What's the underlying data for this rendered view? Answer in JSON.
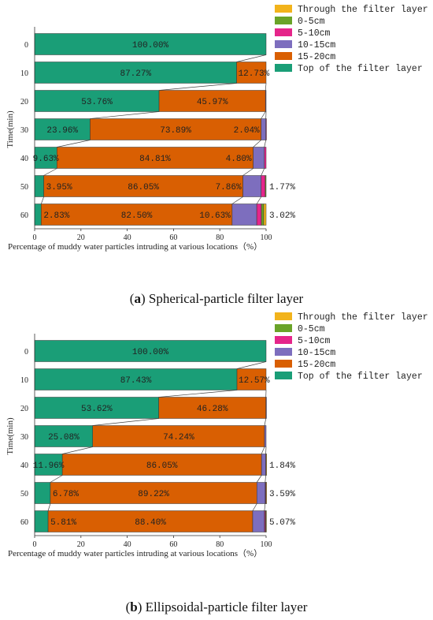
{
  "colors": {
    "Through the filter layer": "#F2B31B",
    "0-5cm": "#6AA328",
    "5-10cm": "#E5258A",
    "10-15cm": "#7D6EBE",
    "15-20cm": "#D95F02",
    "Top of the filter layer": "#1A9E77"
  },
  "chart_data": [
    {
      "type": "bar",
      "orientation": "horizontal-stacked",
      "caption_letter": "a",
      "caption_text": "Spherical-particle filter layer",
      "xlabel": "Percentage of muddy water particles intruding at various locations（%）",
      "ylabel": "Time(min)",
      "xlim": [
        0,
        100
      ],
      "xticks": [
        "0",
        "20",
        "40",
        "60",
        "80",
        "100"
      ],
      "categories": [
        "0",
        "10",
        "20",
        "30",
        "40",
        "50",
        "60"
      ],
      "legend": [
        "Through the filter layer",
        "0-5cm",
        "5-10cm",
        "10-15cm",
        "15-20cm",
        "Top of the filter layer"
      ],
      "legend_position": "top-right",
      "series": [
        {
          "name": "Top of the filter layer",
          "values": [
            100,
            87.27,
            53.76,
            23.96,
            9.63,
            3.95,
            2.83
          ]
        },
        {
          "name": "15-20cm",
          "values": [
            0,
            12.73,
            45.97,
            73.89,
            84.81,
            86.05,
            82.5
          ]
        },
        {
          "name": "10-15cm",
          "values": [
            0,
            0,
            0.27,
            2.04,
            4.8,
            7.86,
            10.63
          ]
        },
        {
          "name": "5-10cm",
          "values": [
            0,
            0,
            0,
            0.11,
            0.76,
            1.77,
            2.0
          ]
        },
        {
          "name": "0-5cm",
          "values": [
            0,
            0,
            0,
            0,
            0,
            0.37,
            1.02
          ]
        },
        {
          "name": "Through the filter layer",
          "values": [
            0,
            0,
            0,
            0,
            0,
            0,
            1.02
          ]
        }
      ],
      "labels": [
        [
          {
            "s": 0,
            "text": "100.00%"
          }
        ],
        [
          {
            "s": 0,
            "text": "87.27%"
          },
          {
            "s": 1,
            "text": "12.73%"
          }
        ],
        [
          {
            "s": 0,
            "text": "53.76%"
          },
          {
            "s": 1,
            "text": "45.97%"
          }
        ],
        [
          {
            "s": 0,
            "text": "23.96%"
          },
          {
            "s": 1,
            "text": "73.89%"
          },
          {
            "s": 2,
            "text": "2.04%"
          }
        ],
        [
          {
            "s": 0,
            "text": "9.63%"
          },
          {
            "s": 1,
            "text": "84.81%"
          },
          {
            "s": 2,
            "text": "4.80%"
          }
        ],
        [
          {
            "s": 0,
            "text": "3.95%"
          },
          {
            "s": 1,
            "text": "86.05%"
          },
          {
            "s": 2,
            "text": "7.86%"
          },
          {
            "outside": true,
            "text": "1.77%"
          }
        ],
        [
          {
            "s": 0,
            "text": "2.83%"
          },
          {
            "s": 1,
            "text": "82.50%"
          },
          {
            "s": 2,
            "text": "10.63%"
          },
          {
            "outside": true,
            "text": "3.02%"
          }
        ]
      ]
    },
    {
      "type": "bar",
      "orientation": "horizontal-stacked",
      "caption_letter": "b",
      "caption_text": "Ellipsoidal-particle filter layer",
      "xlabel": "Percentage of muddy water particles intruding at various locations（%）",
      "ylabel": "Time(min)",
      "xlim": [
        0,
        100
      ],
      "xticks": [
        "0",
        "20",
        "40",
        "60",
        "80",
        "100"
      ],
      "categories": [
        "0",
        "10",
        "20",
        "30",
        "40",
        "50",
        "60"
      ],
      "legend": [
        "Through the filter layer",
        "0-5cm",
        "5-10cm",
        "10-15cm",
        "15-20cm",
        "Top of the filter layer"
      ],
      "legend_position": "top-right",
      "series": [
        {
          "name": "Top of the filter layer",
          "values": [
            100,
            87.43,
            53.62,
            25.08,
            11.96,
            6.78,
            5.81
          ]
        },
        {
          "name": "15-20cm",
          "values": [
            0,
            12.57,
            46.28,
            74.24,
            86.05,
            89.22,
            88.4
          ]
        },
        {
          "name": "10-15cm",
          "values": [
            0,
            0,
            0.1,
            0.68,
            1.84,
            3.59,
            5.07
          ]
        },
        {
          "name": "5-10cm",
          "values": [
            0,
            0,
            0,
            0,
            0.1,
            0.25,
            0.4
          ]
        },
        {
          "name": "0-5cm",
          "values": [
            0,
            0,
            0,
            0,
            0,
            0.1,
            0.2
          ]
        },
        {
          "name": "Through the filter layer",
          "values": [
            0,
            0,
            0,
            0,
            0.05,
            0.06,
            0.12
          ]
        }
      ],
      "labels": [
        [
          {
            "s": 0,
            "text": "100.00%"
          }
        ],
        [
          {
            "s": 0,
            "text": "87.43%"
          },
          {
            "s": 1,
            "text": "12.57%"
          }
        ],
        [
          {
            "s": 0,
            "text": "53.62%"
          },
          {
            "s": 1,
            "text": "46.28%"
          }
        ],
        [
          {
            "s": 0,
            "text": "25.08%"
          },
          {
            "s": 1,
            "text": "74.24%"
          }
        ],
        [
          {
            "s": 0,
            "text": "11.96%"
          },
          {
            "s": 1,
            "text": "86.05%"
          },
          {
            "outside": true,
            "text": "1.84%"
          }
        ],
        [
          {
            "s": 0,
            "text": "6.78%"
          },
          {
            "s": 1,
            "text": "89.22%"
          },
          {
            "outside": true,
            "text": "3.59%"
          }
        ],
        [
          {
            "s": 0,
            "text": "5.81%"
          },
          {
            "s": 1,
            "text": "88.40%"
          },
          {
            "outside": true,
            "text": "5.07%"
          }
        ]
      ]
    }
  ]
}
